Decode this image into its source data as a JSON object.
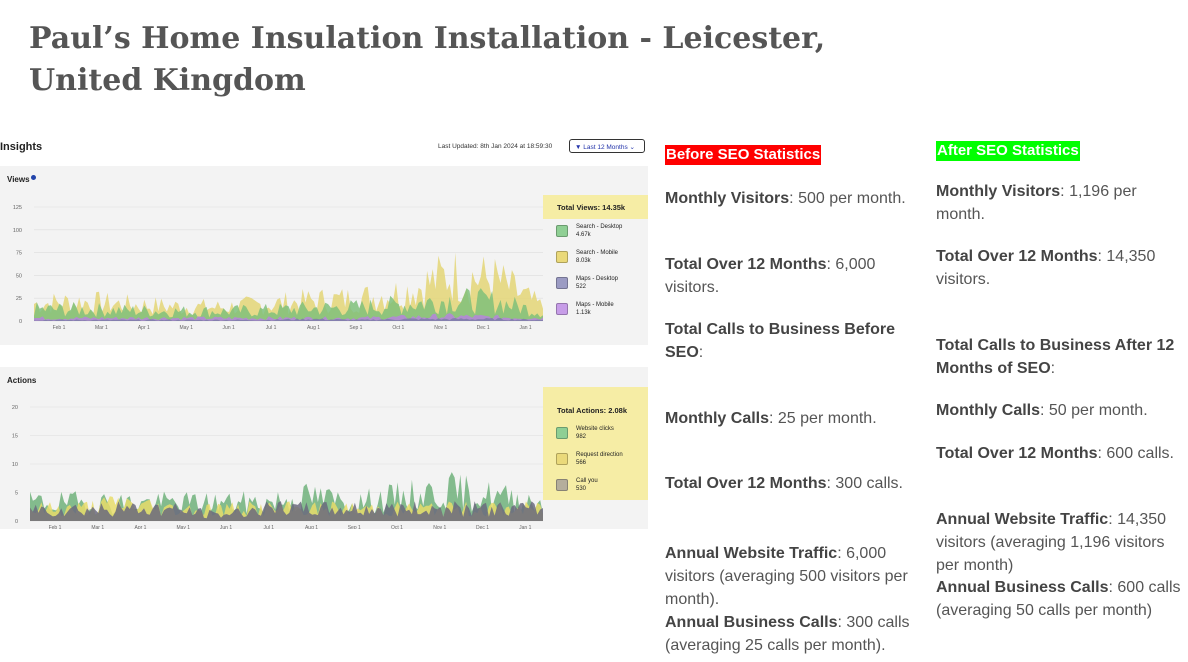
{
  "page": {
    "title": "Paul’s Home Insulation Installation - Leicester, United Kingdom"
  },
  "insights": {
    "title": "Insights",
    "last_updated": "Last Updated: 8th Jan 2024 at 18:59:30",
    "filter_label": "Last 12 Months",
    "views": {
      "title": "Views",
      "total": "Total Views: 14.35k",
      "legend": [
        {
          "name": "Search - Desktop",
          "count": "4.67k",
          "color": "#8fcf94"
        },
        {
          "name": "Search - Mobile",
          "count": "8.03k",
          "color": "#ead97a"
        },
        {
          "name": "Maps - Desktop",
          "count": "522",
          "color": "#9b9bc3"
        },
        {
          "name": "Maps - Mobile",
          "count": "1.13k",
          "color": "#c79de8"
        }
      ]
    },
    "actions": {
      "title": "Actions",
      "total": "Total Actions: 2.08k",
      "legend": [
        {
          "name": "Website clicks",
          "count": "982",
          "color": "#8fcf94"
        },
        {
          "name": "Request direction",
          "count": "566",
          "color": "#ead97a"
        },
        {
          "name": "Call you",
          "count": "530",
          "color": "#b5ae9c"
        }
      ]
    }
  },
  "chart_data": [
    {
      "type": "area",
      "title": "Views",
      "categories": [
        "Feb 1",
        "Mar 1",
        "Apr 1",
        "May 1",
        "Jun 1",
        "Jul 1",
        "Aug 1",
        "Sep 1",
        "Oct 1",
        "Nov 1",
        "Dec 1",
        "Jan 1"
      ],
      "series": [
        {
          "name": "Search - Mobile",
          "values": [
            18,
            20,
            17,
            15,
            14,
            17,
            21,
            23,
            30,
            48,
            42,
            14
          ]
        },
        {
          "name": "Search - Desktop",
          "values": [
            12,
            12,
            11,
            10,
            10,
            11,
            13,
            14,
            17,
            22,
            20,
            9
          ]
        },
        {
          "name": "Maps - Mobile",
          "values": [
            3,
            3,
            3,
            3,
            3,
            3,
            3,
            3,
            4,
            5,
            4,
            3
          ]
        },
        {
          "name": "Maps - Desktop",
          "values": [
            1,
            1,
            1,
            1,
            1,
            1,
            2,
            1,
            2,
            2,
            2,
            1
          ]
        }
      ],
      "yticks": [
        0,
        25,
        50,
        75,
        100,
        125
      ],
      "ylim": [
        0,
        125
      ]
    },
    {
      "type": "area",
      "title": "Actions",
      "categories": [
        "Feb 1",
        "Mar 1",
        "Apr 1",
        "May 1",
        "Jun 1",
        "Jul 1",
        "Aug 1",
        "Sep 1",
        "Oct 1",
        "Nov 1",
        "Dec 1",
        "Jan 1"
      ],
      "series": [
        {
          "name": "Website clicks",
          "values": [
            3,
            3,
            3,
            3,
            3,
            3,
            4,
            3,
            4,
            5,
            4,
            3
          ]
        },
        {
          "name": "Request direction",
          "values": [
            2,
            2,
            3,
            2,
            2,
            2,
            2,
            2,
            2,
            2,
            2,
            2
          ]
        },
        {
          "name": "Call you",
          "values": [
            2,
            2,
            2,
            2,
            1,
            2,
            2,
            2,
            2,
            2,
            2,
            2
          ]
        }
      ],
      "yticks": [
        0,
        5,
        10,
        15,
        20
      ],
      "ylim": [
        0,
        20
      ]
    }
  ],
  "before": {
    "heading": "Before SEO Statistics",
    "monthly_visitors_label": "Monthly Visitors",
    "monthly_visitors_value": ": 500 per month.",
    "total_12_label": "Total Over 12 Months",
    "total_12_value": ": 6,000 visitors.",
    "calls_heading": "Total Calls to Business Before SEO",
    "monthly_calls_label": "Monthly Calls",
    "monthly_calls_value": ": 25 per month.",
    "total_calls_label": "Total Over 12 Months",
    "total_calls_value": ": 300 calls.",
    "annual_traffic_label": "Annual Website Traffic",
    "annual_traffic_value": ": 6,000 visitors (averaging 500 visitors per month).",
    "annual_calls_label": "Annual Business Calls",
    "annual_calls_value": ": 300 calls (averaging 25 calls per month)."
  },
  "after": {
    "heading": "After SEO Statistics",
    "monthly_visitors_label": "Monthly Visitors",
    "monthly_visitors_value": ": 1,196 per month.",
    "total_12_label": "Total Over 12 Months",
    "total_12_value": ": 14,350 visitors.",
    "calls_heading": "Total Calls to Business After 12 Months of SEO",
    "monthly_calls_label": "Monthly Calls",
    "monthly_calls_value": ": 50 per month.",
    "total_calls_label": "Total Over 12 Months",
    "total_calls_value": ": 600 calls.",
    "annual_traffic_label": "Annual Website Traffic",
    "annual_traffic_value": ": 14,350 visitors (averaging 1,196 visitors per month)",
    "annual_calls_label": "Annual Business Calls",
    "annual_calls_value": ": 600 calls (averaging 50 calls per month)"
  }
}
